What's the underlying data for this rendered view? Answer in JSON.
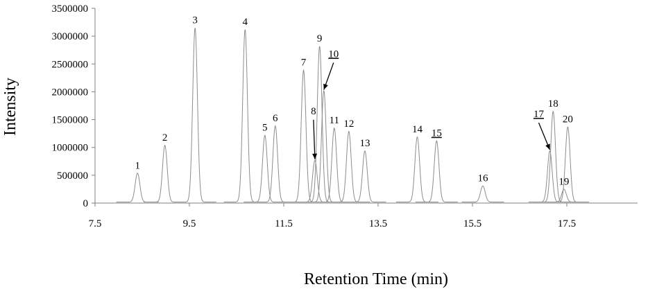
{
  "chart_data": {
    "type": "line",
    "xlabel": "Retention Time (min)",
    "ylabel": "Intensity",
    "xlim": [
      7.5,
      19.0
    ],
    "ylim": [
      0,
      3500000
    ],
    "x_ticks": [
      "7.5",
      "9.5",
      "11.5",
      "13.5",
      "15.5",
      "17.5"
    ],
    "y_ticks": [
      "0",
      "500000",
      "1000000",
      "1500000",
      "2000000",
      "2500000",
      "3000000",
      "3500000"
    ],
    "grid": false,
    "legend": "none",
    "trace_color": "#8c8c8c",
    "peaks": [
      {
        "label": "1",
        "x": 8.4,
        "y": 520000,
        "underlined": false
      },
      {
        "label": "2",
        "x": 8.98,
        "y": 1020000,
        "underlined": false
      },
      {
        "label": "3",
        "x": 9.62,
        "y": 3130000,
        "underlined": false
      },
      {
        "label": "4",
        "x": 10.68,
        "y": 3100000,
        "underlined": false
      },
      {
        "label": "5",
        "x": 11.1,
        "y": 1200000,
        "underlined": false
      },
      {
        "label": "6",
        "x": 11.32,
        "y": 1370000,
        "underlined": false
      },
      {
        "label": "7",
        "x": 11.92,
        "y": 2370000,
        "underlined": false
      },
      {
        "label": "8",
        "x": 12.16,
        "y": 750000,
        "underlined": false
      },
      {
        "label": "9",
        "x": 12.26,
        "y": 2800000,
        "underlined": false
      },
      {
        "label": "10",
        "x": 12.35,
        "y": 2000000,
        "underlined": true
      },
      {
        "label": "11",
        "x": 12.57,
        "y": 1330000,
        "underlined": false
      },
      {
        "label": "12",
        "x": 12.88,
        "y": 1270000,
        "underlined": false
      },
      {
        "label": "13",
        "x": 13.22,
        "y": 920000,
        "underlined": false
      },
      {
        "label": "14",
        "x": 14.33,
        "y": 1170000,
        "underlined": false
      },
      {
        "label": "15",
        "x": 14.74,
        "y": 1100000,
        "underlined": true
      },
      {
        "label": "16",
        "x": 15.72,
        "y": 290000,
        "underlined": false
      },
      {
        "label": "17",
        "x": 17.14,
        "y": 920000,
        "underlined": true
      },
      {
        "label": "18",
        "x": 17.21,
        "y": 1630000,
        "underlined": false
      },
      {
        "label": "19",
        "x": 17.44,
        "y": 230000,
        "underlined": false
      },
      {
        "label": "20",
        "x": 17.52,
        "y": 1350000,
        "underlined": false
      }
    ]
  }
}
